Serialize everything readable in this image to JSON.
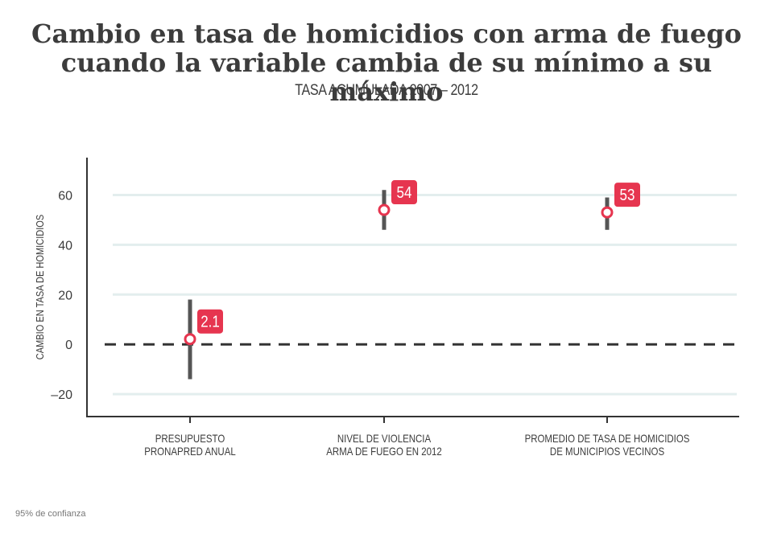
{
  "title": {
    "line1": "Cambio en tasa de homicidios con arma de fuego",
    "line2": "cuando la variable cambia de su mínimo a su máximo"
  },
  "subtitle": "TASA ACUMULADA 2007 – 2012",
  "footnote": "95% de confianza",
  "colors": {
    "accent": "#e6354f",
    "text": "#3c3c3c",
    "axis": "#333333",
    "grid": "#e3eeee",
    "errorbar": "#555555"
  },
  "chart_data": {
    "type": "scatter",
    "title": "Cambio en tasa de homicidios con arma de fuego cuando la variable cambia de su mínimo a su máximo",
    "subtitle": "TASA ACUMULADA 2007 – 2012",
    "ylabel": "CAMBIO EN TASA DE HOMICIDIOS",
    "xlabel": "",
    "ylim": [
      -29,
      75
    ],
    "yticks": [
      60,
      40,
      20,
      0,
      -20
    ],
    "ytick_labels": [
      "60",
      "40",
      "20",
      "0",
      "–20"
    ],
    "grid": true,
    "reference_line": 0,
    "points": [
      {
        "label_lines": [
          "PRESUPUESTO",
          "PRONAPRED ANUAL"
        ],
        "value": 2.1,
        "value_label": "2.1",
        "ci_low": -14,
        "ci_high": 18
      },
      {
        "label_lines": [
          "NIVEL DE VIOLENCIA",
          "ARMA DE FUEGO EN 2012"
        ],
        "value": 54,
        "value_label": "54",
        "ci_low": 46,
        "ci_high": 62
      },
      {
        "label_lines": [
          "PROMEDIO DE TASA DE HOMICIDIOS",
          "DE MUNICIPIOS VECINOS"
        ],
        "value": 53,
        "value_label": "53",
        "ci_low": 46,
        "ci_high": 59
      }
    ],
    "note": "95% de confianza"
  }
}
